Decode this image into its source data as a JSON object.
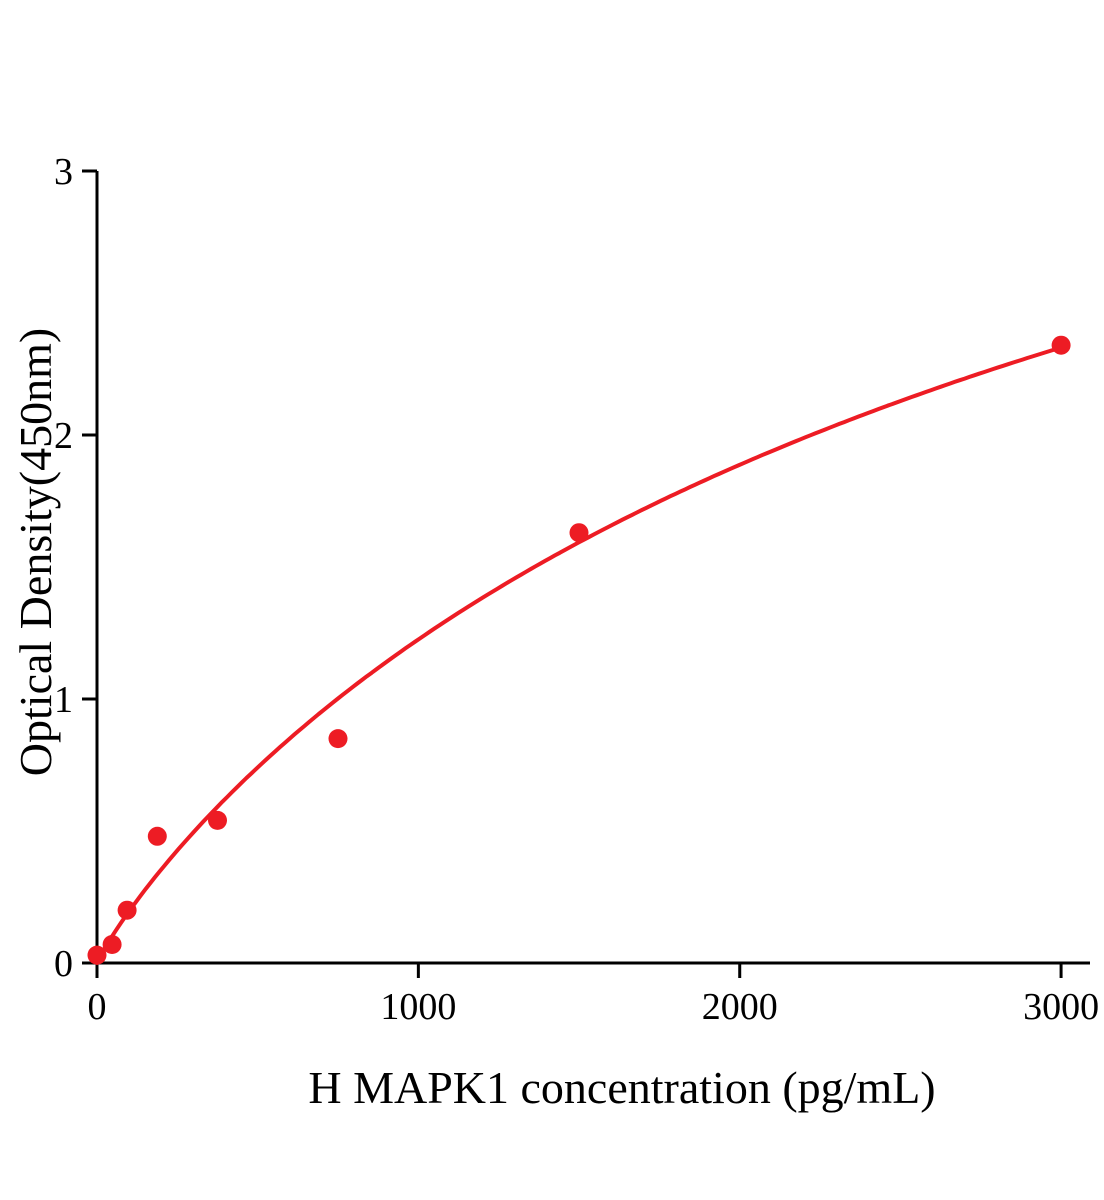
{
  "chart_data": {
    "type": "scatter",
    "title": "",
    "xlabel": "H MAPK1 concentration (pg/mL)",
    "ylabel": "Optical Density(450nm)",
    "x": [
      0,
      46.9,
      93.8,
      187.5,
      375,
      750,
      1500,
      3000
    ],
    "y": [
      0.03,
      0.07,
      0.2,
      0.48,
      0.54,
      0.85,
      1.63,
      2.34
    ],
    "xlim": [
      0,
      3090
    ],
    "ylim": [
      0,
      3
    ],
    "x_ticks": [
      0,
      1000,
      2000,
      3000
    ],
    "y_ticks": [
      0,
      1,
      2,
      3
    ],
    "grid": false,
    "legend": false,
    "fit": {
      "type": "hill",
      "vmax": 5.01,
      "k": 3500,
      "h": 0.9
    },
    "colors": {
      "points": "#ed1c24",
      "curve": "#ed1c24",
      "axis": "#000000",
      "background": "#ffffff"
    }
  }
}
